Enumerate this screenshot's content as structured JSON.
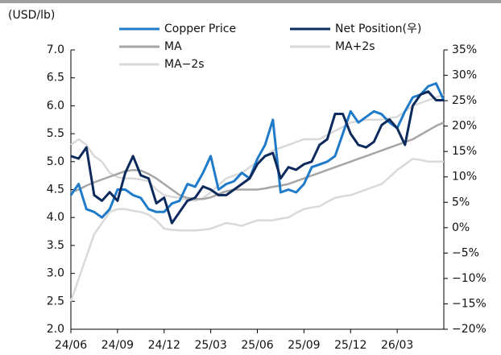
{
  "chart_data": {
    "type": "line",
    "y_label": "(USD/lb)",
    "categories": [
      "24/06",
      null,
      null,
      null,
      null,
      null,
      "24/09",
      null,
      null,
      null,
      null,
      null,
      "24/12",
      null,
      null,
      null,
      null,
      null,
      "25/03",
      null,
      null,
      null,
      null,
      null,
      "25/06",
      null,
      null,
      null,
      null,
      null,
      "25/09",
      null,
      null,
      null,
      null,
      null,
      "25/12",
      null,
      null,
      null,
      null,
      null,
      "26/03",
      null,
      null,
      null,
      null,
      null,
      null
    ],
    "series": [
      {
        "name": "MA+2s",
        "color": "#d9d9d9",
        "values": [
          5.3,
          5.4,
          5.3,
          5.1,
          5.0,
          4.8,
          4.72,
          4.7,
          4.7,
          4.68,
          4.65,
          4.5,
          4.4,
          4.37,
          4.35,
          4.32,
          4.3,
          4.35,
          4.45,
          4.58,
          4.7,
          4.75,
          4.8,
          4.9,
          5.0,
          5.1,
          5.2,
          5.25,
          5.3,
          5.35,
          5.4,
          5.4,
          5.4,
          5.48,
          5.55,
          5.62,
          5.7,
          5.72,
          5.75,
          5.75,
          5.75,
          5.78,
          5.8,
          5.9,
          6.0,
          6.05,
          6.1,
          6.15,
          6.2
        ]
      },
      {
        "name": "MA−2s",
        "color": "#d9d9d9",
        "values": [
          2.5,
          2.9,
          3.3,
          3.7,
          3.9,
          4.1,
          4.15,
          4.15,
          4.12,
          4.1,
          4.05,
          3.95,
          3.8,
          3.78,
          3.77,
          3.77,
          3.77,
          3.78,
          3.8,
          3.85,
          3.9,
          3.88,
          3.85,
          3.9,
          3.95,
          3.95,
          3.95,
          3.98,
          4.0,
          4.08,
          4.15,
          4.18,
          4.2,
          4.28,
          4.35,
          4.38,
          4.4,
          4.45,
          4.5,
          4.55,
          4.6,
          4.72,
          4.85,
          4.95,
          5.05,
          5.03,
          5.0,
          5.0,
          5.0
        ]
      },
      {
        "name": "MA",
        "color": "#a6a6a6",
        "values": [
          4.45,
          4.5,
          4.57,
          4.63,
          4.68,
          4.73,
          4.78,
          4.83,
          4.85,
          4.84,
          4.78,
          4.7,
          4.6,
          4.5,
          4.4,
          4.35,
          4.33,
          4.33,
          4.36,
          4.42,
          4.47,
          4.5,
          4.5,
          4.5,
          4.5,
          4.52,
          4.55,
          4.57,
          4.6,
          4.65,
          4.7,
          4.75,
          4.8,
          4.85,
          4.9,
          4.95,
          5.0,
          5.05,
          5.1,
          5.15,
          5.2,
          5.25,
          5.3,
          5.35,
          5.4,
          5.48,
          5.56,
          5.64,
          5.7
        ]
      },
      {
        "name": "Copper Price",
        "color": "#1f7bc9",
        "values": [
          4.4,
          4.6,
          4.15,
          4.1,
          4.0,
          4.15,
          4.5,
          4.5,
          4.4,
          4.35,
          4.15,
          4.1,
          4.1,
          4.25,
          4.3,
          4.6,
          4.55,
          4.8,
          5.1,
          4.5,
          4.6,
          4.65,
          4.8,
          4.7,
          5.05,
          5.3,
          5.75,
          4.45,
          4.5,
          4.45,
          4.6,
          4.9,
          4.95,
          5.0,
          5.1,
          5.5,
          5.9,
          5.7,
          5.8,
          5.9,
          5.85,
          5.7,
          5.6,
          5.9,
          6.15,
          6.2,
          6.35,
          6.4,
          6.1
        ]
      },
      {
        "name": "Net Position(우)",
        "color": "#0c2a5c",
        "axis": "y2",
        "values": [
          14.1,
          13.6,
          15.8,
          6.4,
          5.3,
          7.0,
          5.3,
          10.8,
          14.1,
          10.3,
          9.7,
          4.8,
          5.9,
          0.9,
          3.1,
          5.3,
          5.9,
          8.1,
          7.5,
          6.4,
          6.4,
          7.5,
          8.6,
          9.7,
          12.5,
          14.1,
          14.7,
          9.7,
          11.9,
          11.4,
          12.5,
          13.0,
          16.3,
          17.4,
          22.4,
          22.4,
          18.5,
          16.3,
          15.8,
          16.9,
          20.2,
          21.3,
          19.6,
          16.3,
          24.0,
          26.2,
          26.8,
          25.1,
          25.1
        ]
      }
    ],
    "ylim": [
      2,
      7
    ],
    "yticks": [
      {
        "value": 2,
        "label": "2.0"
      },
      2.5,
      {
        "value": 3,
        "label": "3.0"
      },
      3.5,
      {
        "value": 4,
        "label": "4.0"
      },
      4.5,
      {
        "value": 5,
        "label": "5.0"
      },
      5.5,
      {
        "value": 6,
        "label": "6.0"
      },
      6.5,
      {
        "value": 7,
        "label": "7.0"
      }
    ],
    "y2lim": [
      -20,
      35
    ],
    "y2ticks": [
      {
        "value": -20,
        "label": "−20%"
      },
      {
        "value": -15,
        "label": "−15%"
      },
      {
        "value": -10,
        "label": "−10%"
      },
      {
        "value": -5,
        "label": "−5%"
      },
      {
        "value": 0,
        "label": "0%"
      },
      {
        "value": 5,
        "label": "5%"
      },
      {
        "value": 10,
        "label": "10%"
      },
      {
        "value": 15,
        "label": "15%"
      },
      {
        "value": 20,
        "label": "20%"
      },
      {
        "value": 25,
        "label": "25%"
      },
      {
        "value": 30,
        "label": "30%"
      },
      {
        "value": 35,
        "label": "35%"
      }
    ],
    "grid": false
  }
}
